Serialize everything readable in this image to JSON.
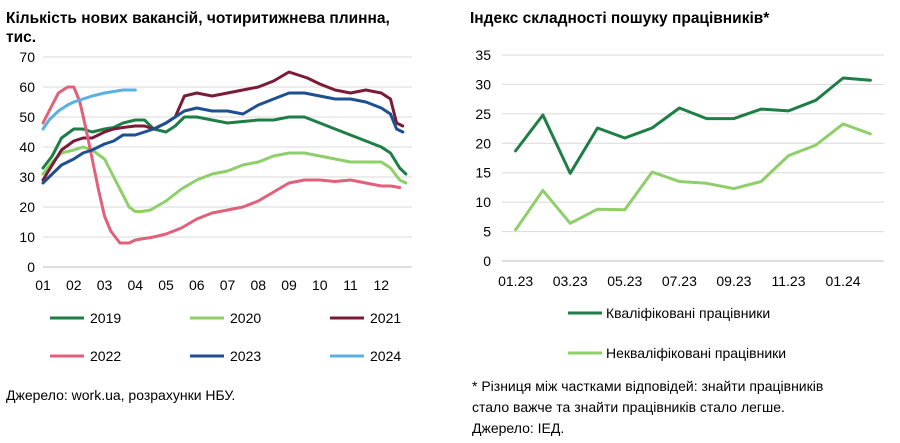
{
  "left": {
    "title_line1": "Кількість нових вакансій, чотиритижнева плинна,",
    "title_line2": "тис.",
    "source": "Джерело: work.ua, розрахунки НБУ.",
    "chart_data": {
      "type": "line",
      "title": "Кількість нових вакансій, чотиритижнева плинна, тис.",
      "x_tick_labels": [
        "01",
        "02",
        "03",
        "04",
        "05",
        "06",
        "07",
        "08",
        "09",
        "10",
        "11",
        "12"
      ],
      "y_ticks": [
        0,
        10,
        20,
        30,
        40,
        50,
        60,
        70
      ],
      "ylim": [
        0,
        70
      ],
      "xlim": [
        1,
        13
      ],
      "grid": true,
      "legend_position": "bottom",
      "series": [
        {
          "name": "2019",
          "color": "#1e7e45",
          "x": [
            1.0,
            1.3,
            1.6,
            2.0,
            2.3,
            2.6,
            3.0,
            3.3,
            3.6,
            4.0,
            4.3,
            4.6,
            5.0,
            5.3,
            5.6,
            6.0,
            6.5,
            7.0,
            7.5,
            8.0,
            8.5,
            9.0,
            9.5,
            10.0,
            10.5,
            11.0,
            11.5,
            12.0,
            12.3,
            12.6,
            12.8
          ],
          "y": [
            33,
            37,
            43,
            46,
            46,
            45,
            46,
            46.5,
            48,
            49,
            49,
            46,
            45,
            47,
            50,
            50,
            49,
            48,
            48.5,
            49,
            49,
            50,
            50,
            48,
            46,
            44,
            42,
            40,
            38,
            33,
            31
          ]
        },
        {
          "name": "2020",
          "color": "#8fcf6a",
          "x": [
            1.0,
            1.3,
            1.6,
            2.0,
            2.3,
            2.6,
            3.0,
            3.3,
            3.6,
            3.8,
            4.0,
            4.2,
            4.5,
            5.0,
            5.5,
            6.0,
            6.5,
            7.0,
            7.5,
            8.0,
            8.5,
            9.0,
            9.5,
            10.0,
            10.5,
            11.0,
            11.5,
            12.0,
            12.3,
            12.6,
            12.8
          ],
          "y": [
            31,
            35,
            38,
            39,
            40,
            39,
            36,
            30,
            24,
            20,
            18.5,
            18.5,
            19,
            22,
            26,
            29,
            31,
            32,
            34,
            35,
            37,
            38,
            38,
            37,
            36,
            35,
            35,
            35,
            33,
            29,
            28
          ]
        },
        {
          "name": "2021",
          "color": "#7a1c38",
          "x": [
            1.0,
            1.3,
            1.6,
            2.0,
            2.3,
            2.6,
            3.0,
            3.3,
            3.6,
            4.0,
            4.3,
            4.6,
            5.0,
            5.3,
            5.6,
            6.0,
            6.5,
            7.0,
            7.5,
            8.0,
            8.5,
            9.0,
            9.3,
            9.6,
            10.0,
            10.5,
            11.0,
            11.5,
            12.0,
            12.3,
            12.5,
            12.7
          ],
          "y": [
            29,
            34,
            39,
            42,
            43,
            43,
            45,
            46,
            46.5,
            47,
            47,
            46,
            48,
            50,
            57,
            58,
            57,
            58,
            59,
            60,
            62,
            65,
            64,
            63,
            61,
            59,
            58,
            59,
            58,
            56,
            48,
            47
          ]
        },
        {
          "name": "2022",
          "color": "#e1607a",
          "x": [
            1.0,
            1.2,
            1.5,
            1.8,
            2.0,
            2.2,
            2.4,
            2.6,
            2.8,
            3.0,
            3.2,
            3.5,
            3.8,
            4.0,
            4.3,
            4.6,
            5.0,
            5.5,
            6.0,
            6.5,
            7.0,
            7.5,
            8.0,
            8.5,
            9.0,
            9.5,
            10.0,
            10.5,
            11.0,
            11.5,
            12.0,
            12.3,
            12.6
          ],
          "y": [
            48,
            52,
            58,
            60,
            60,
            55,
            46,
            36,
            26,
            17,
            12,
            8,
            8,
            9,
            9.5,
            10,
            11,
            13,
            16,
            18,
            19,
            20,
            22,
            25,
            28,
            29,
            29,
            28.5,
            29,
            28,
            27,
            27,
            26.5
          ]
        },
        {
          "name": "2023",
          "color": "#1d4f91",
          "x": [
            1.0,
            1.3,
            1.6,
            2.0,
            2.3,
            2.6,
            3.0,
            3.3,
            3.6,
            4.0,
            4.3,
            4.6,
            5.0,
            5.3,
            5.6,
            6.0,
            6.5,
            7.0,
            7.5,
            8.0,
            8.5,
            9.0,
            9.5,
            10.0,
            10.5,
            11.0,
            11.5,
            12.0,
            12.3,
            12.5,
            12.7
          ],
          "y": [
            28,
            31,
            34,
            36,
            38,
            39,
            41,
            42,
            44,
            44,
            45,
            46,
            48,
            50,
            52,
            53,
            52,
            52,
            51,
            54,
            56,
            58,
            58,
            57,
            56,
            56,
            55,
            53,
            51,
            46,
            45
          ]
        },
        {
          "name": "2024",
          "color": "#5ab0e3",
          "x": [
            1.0,
            1.2,
            1.5,
            1.8,
            2.0,
            2.3,
            2.6,
            3.0,
            3.3,
            3.6,
            4.0
          ],
          "y": [
            46,
            49,
            52,
            54,
            55,
            56,
            57,
            58,
            58.5,
            59,
            59
          ]
        }
      ]
    }
  },
  "right": {
    "title": "Індекс складності пошуку працівників*",
    "note_line1": "* Різниця між частками відповідей: знайти працівників",
    "note_line2": "стало важче та знайти працівників стало легше.",
    "note_line3": "Джерело: IЕД.",
    "chart_data": {
      "type": "line",
      "title": "Індекс складності пошуку працівників*",
      "categories": [
        "01.23",
        "02.23",
        "03.23",
        "04.23",
        "05.23",
        "06.23",
        "07.23",
        "08.23",
        "09.23",
        "10.23",
        "11.23",
        "12.23",
        "01.24",
        "02.24"
      ],
      "x_tick_labels": [
        "01.23",
        "03.23",
        "05.23",
        "07.23",
        "09.23",
        "11.23",
        "01.24"
      ],
      "y_ticks": [
        0,
        5,
        10,
        15,
        20,
        25,
        30,
        35
      ],
      "ylim": [
        0,
        35
      ],
      "grid": true,
      "legend_position": "bottom",
      "series": [
        {
          "name": "Кваліфіковані працівники",
          "color": "#1e7e45",
          "values": [
            18.7,
            24.8,
            14.9,
            22.6,
            20.9,
            22.6,
            26.0,
            24.2,
            24.2,
            25.8,
            25.5,
            27.3,
            31.1,
            30.7
          ]
        },
        {
          "name": "Некваліфіковані працівники",
          "color": "#8fcf6a",
          "values": [
            5.3,
            12.0,
            6.4,
            8.8,
            8.7,
            15.1,
            13.5,
            13.2,
            12.3,
            13.5,
            17.9,
            19.7,
            23.3,
            21.6
          ]
        }
      ]
    }
  }
}
